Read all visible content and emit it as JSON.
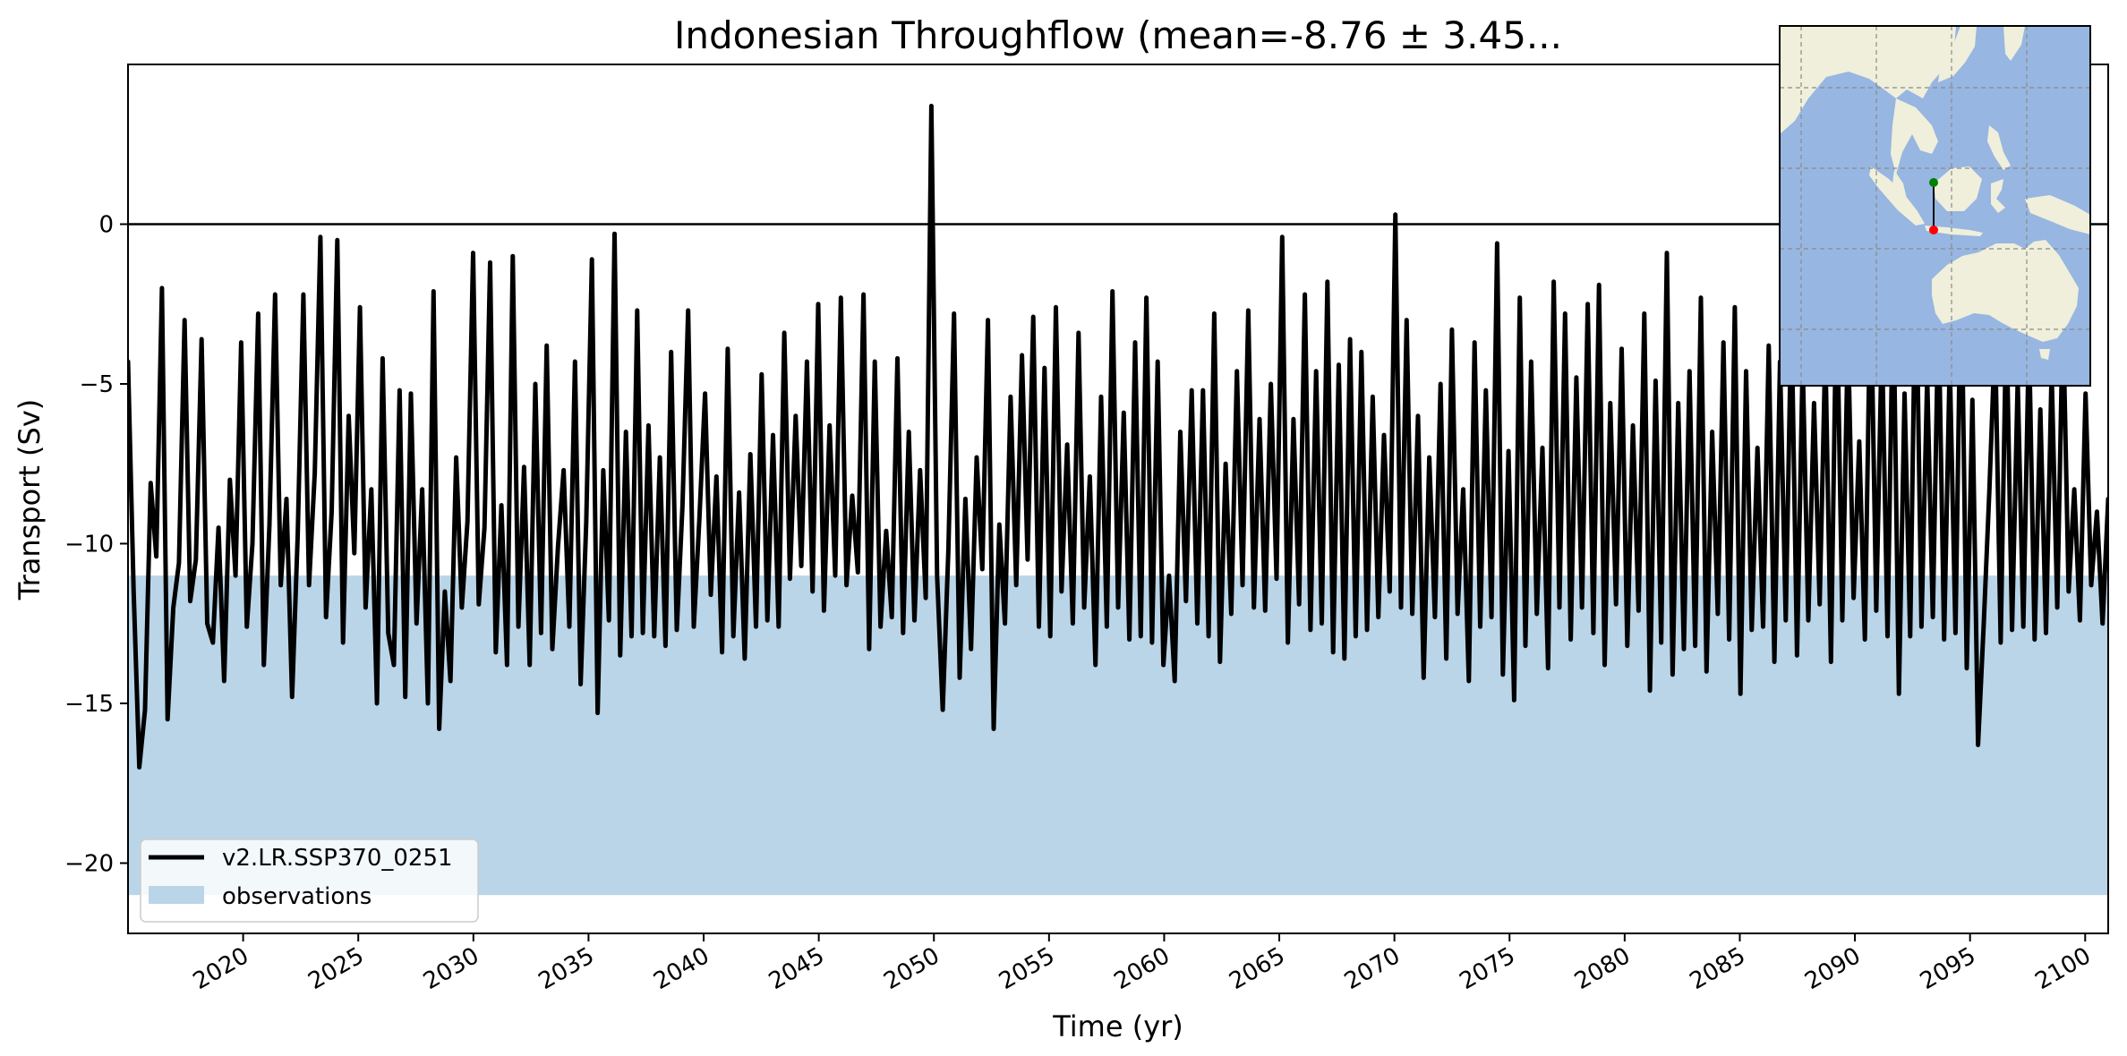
{
  "chart_data": {
    "type": "line",
    "title": "Indonesian Throughflow (mean=-8.76 ± 3.45...",
    "xlabel": "Time (yr)",
    "ylabel": "Transport (Sv)",
    "xlim": [
      2015.0,
      2101.0
    ],
    "ylim": [
      -22.2,
      5.0
    ],
    "xticks": [
      2020,
      2025,
      2030,
      2035,
      2040,
      2045,
      2050,
      2055,
      2060,
      2065,
      2070,
      2075,
      2080,
      2085,
      2090,
      2095,
      2100
    ],
    "xtick_labels": [
      "2020",
      "2025",
      "2030",
      "2035",
      "2040",
      "2045",
      "2050",
      "2055",
      "2060",
      "2065",
      "2070",
      "2075",
      "2080",
      "2085",
      "2090",
      "2095",
      "2100"
    ],
    "yticks": [
      0,
      -5,
      -10,
      -15,
      -20
    ],
    "ytick_labels": [
      "0",
      "−5",
      "−10",
      "−15",
      "−20"
    ],
    "zero_line": 0,
    "grid": false,
    "legend_position": "lower-left",
    "observations": {
      "name": "observations",
      "y_range": [
        -21.0,
        -11.0
      ],
      "color": "#bad5e8"
    },
    "series": [
      {
        "name": "v2.LR.SSP370_0251",
        "color": "#000000",
        "x_start": 2015.0,
        "x_end": 2101.0,
        "values": [
          -4.3,
          -11.5,
          -17.0,
          -15.2,
          -8.1,
          -10.4,
          -2.0,
          -15.5,
          -12.0,
          -10.6,
          -3.0,
          -11.8,
          -10.5,
          -3.6,
          -12.5,
          -13.1,
          -9.5,
          -14.3,
          -8.0,
          -11.0,
          -3.7,
          -12.6,
          -10.0,
          -2.8,
          -13.8,
          -9.4,
          -2.2,
          -11.3,
          -8.6,
          -14.8,
          -9.7,
          -2.2,
          -11.3,
          -7.8,
          -0.4,
          -12.3,
          -9.0,
          -0.5,
          -13.1,
          -6.0,
          -10.3,
          -2.6,
          -12.0,
          -8.3,
          -15.0,
          -4.2,
          -12.8,
          -13.8,
          -5.2,
          -14.8,
          -5.3,
          -12.5,
          -8.3,
          -15.0,
          -2.1,
          -15.8,
          -11.5,
          -14.3,
          -7.3,
          -12.0,
          -9.3,
          -0.9,
          -11.9,
          -9.5,
          -1.2,
          -13.4,
          -8.8,
          -13.8,
          -1.0,
          -12.6,
          -7.6,
          -13.8,
          -5.0,
          -12.8,
          -3.8,
          -13.3,
          -10.1,
          -7.7,
          -12.6,
          -4.3,
          -14.4,
          -9.3,
          -1.1,
          -15.3,
          -7.7,
          -12.4,
          -0.3,
          -13.5,
          -6.5,
          -12.9,
          -2.7,
          -12.8,
          -6.3,
          -12.9,
          -7.3,
          -13.2,
          -4.0,
          -12.7,
          -8.8,
          -2.7,
          -12.6,
          -9.2,
          -5.3,
          -11.6,
          -7.9,
          -13.4,
          -3.9,
          -12.9,
          -8.4,
          -13.6,
          -7.2,
          -12.6,
          -4.7,
          -12.4,
          -6.6,
          -12.6,
          -3.4,
          -11.1,
          -6.0,
          -10.7,
          -4.3,
          -11.5,
          -2.5,
          -12.1,
          -6.3,
          -11.0,
          -2.3,
          -11.3,
          -8.5,
          -10.9,
          -2.2,
          -13.3,
          -4.3,
          -12.6,
          -9.6,
          -12.3,
          -4.2,
          -12.8,
          -6.5,
          -12.4,
          -7.7,
          -11.7,
          3.7,
          -11.0,
          -15.2,
          -10.2,
          -2.8,
          -14.2,
          -8.6,
          -13.3,
          -7.3,
          -10.8,
          -3.0,
          -15.8,
          -9.4,
          -12.5,
          -5.4,
          -11.3,
          -4.1,
          -10.5,
          -2.9,
          -12.6,
          -4.5,
          -12.9,
          -2.6,
          -11.5,
          -6.9,
          -12.5,
          -3.4,
          -12.0,
          -7.9,
          -13.8,
          -5.4,
          -12.6,
          -2.1,
          -12.0,
          -5.9,
          -13.0,
          -3.7,
          -12.9,
          -2.3,
          -13.1,
          -4.3,
          -13.8,
          -11.0,
          -14.3,
          -6.5,
          -11.8,
          -5.2,
          -12.5,
          -5.2,
          -12.9,
          -2.8,
          -13.7,
          -7.5,
          -12.2,
          -4.6,
          -11.3,
          -2.7,
          -12.0,
          -6.1,
          -12.1,
          -5.0,
          -11.1,
          -0.4,
          -13.1,
          -6.1,
          -11.9,
          -2.2,
          -12.7,
          -4.6,
          -12.5,
          -1.8,
          -13.4,
          -4.4,
          -13.6,
          -3.6,
          -12.9,
          -4.0,
          -12.7,
          -5.4,
          -12.3,
          -6.6,
          -11.5,
          0.3,
          -12.0,
          -3.0,
          -12.2,
          -6.0,
          -14.2,
          -7.3,
          -12.3,
          -5.0,
          -13.6,
          -3.3,
          -12.2,
          -8.3,
          -14.3,
          -3.7,
          -12.6,
          -5.2,
          -12.3,
          -0.6,
          -14.1,
          -7.1,
          -14.9,
          -2.3,
          -13.2,
          -4.3,
          -12.2,
          -7.0,
          -13.9,
          -1.8,
          -12.0,
          -2.8,
          -13.0,
          -4.8,
          -12.0,
          -2.5,
          -12.8,
          -1.9,
          -13.8,
          -5.6,
          -11.9,
          -3.9,
          -13.2,
          -6.3,
          -12.1,
          -2.8,
          -14.6,
          -4.9,
          -13.1,
          -0.9,
          -14.1,
          -5.6,
          -13.3,
          -4.6,
          -13.2,
          -2.3,
          -14.0,
          -6.5,
          -12.2,
          -3.7,
          -13.0,
          -2.6,
          -14.7,
          -4.6,
          -12.7,
          -7.0,
          -12.6,
          -3.8,
          -13.7,
          -4.3,
          -12.4,
          -2.7,
          -13.5,
          -4.3,
          -12.4,
          -5.6,
          -11.9,
          -3.9,
          -13.7,
          -1.8,
          -12.4,
          -3.4,
          -11.7,
          -6.8,
          -13.0,
          -1.6,
          -12.1,
          -3.5,
          -12.9,
          -1.9,
          -14.7,
          -5.3,
          -12.9,
          -0.8,
          -12.6,
          -4.8,
          -12.3,
          -2.6,
          -13.0,
          -4.3,
          -12.8,
          -1.0,
          -13.9,
          -5.5,
          -16.3,
          -12.5,
          -8.3,
          -3.5,
          -13.1,
          -2.8,
          -12.7,
          -4.9,
          -12.6,
          -3.4,
          -13.0,
          -5.8,
          -12.8,
          -4.6,
          -12.0,
          -2.7,
          -11.5,
          -8.3,
          -12.4,
          -5.3,
          -11.3,
          -9.0,
          -12.5,
          -8.6
        ]
      }
    ]
  },
  "inset_map": {
    "colors": {
      "ocean": "#97b6e1",
      "land": "#efefdb",
      "section": "#000000",
      "start_marker": "#008000",
      "end_marker": "#ff0000"
    }
  }
}
